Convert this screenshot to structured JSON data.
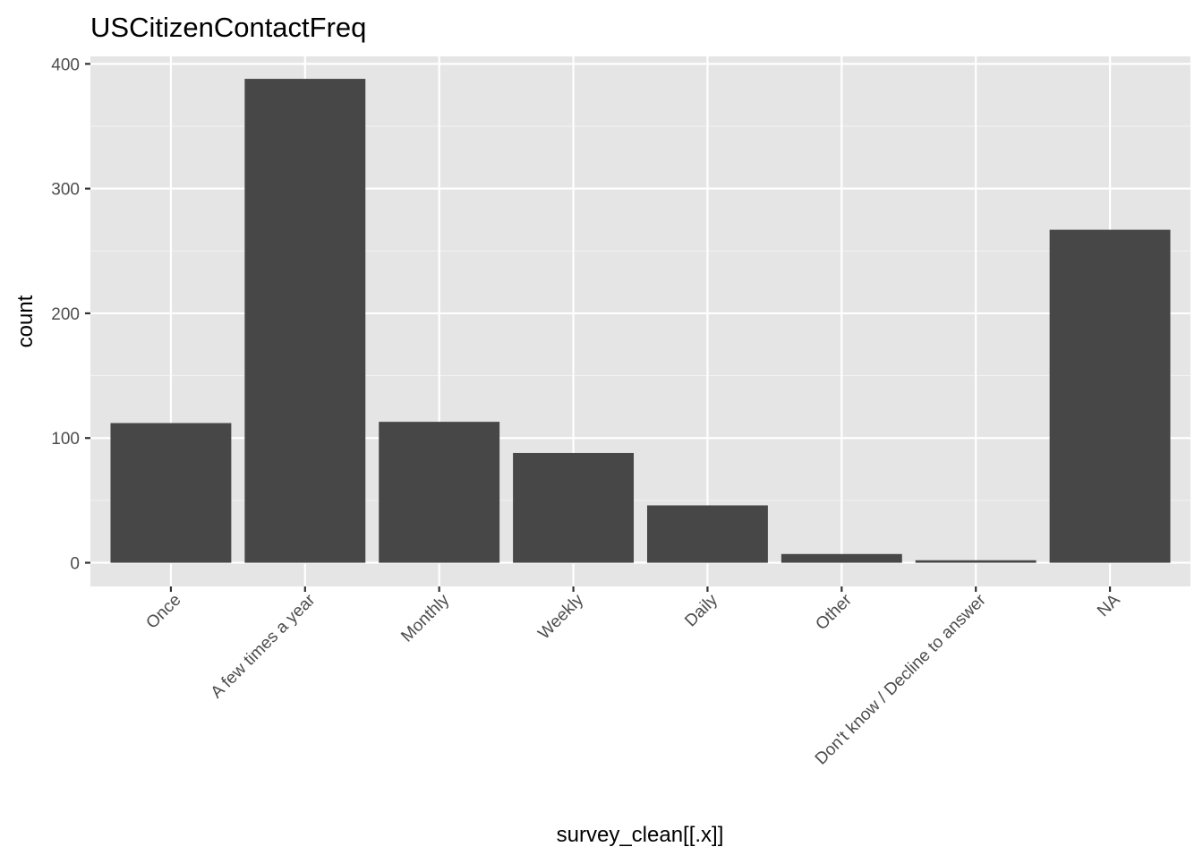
{
  "chart_data": {
    "type": "bar",
    "title": "USCitizenContactFreq",
    "xlabel": "survey_clean[[.x]]",
    "ylabel": "count",
    "categories": [
      "Once",
      "A few times a year",
      "Monthly",
      "Weekly",
      "Daily",
      "Other",
      "Don't know / Decline to answer",
      "NA"
    ],
    "values": [
      112,
      388,
      113,
      88,
      46,
      7,
      2,
      267
    ],
    "ylim": [
      -19,
      406
    ],
    "yticks": [
      0,
      100,
      200,
      300,
      400
    ],
    "ytick_labels": [
      "0",
      "100",
      "200",
      "300",
      "400"
    ],
    "grid": true,
    "legend": "none",
    "colors": {
      "panel_background": "#e5e5e5",
      "grid_major": "#ffffff",
      "grid_minor": "#f2f2f2",
      "bar_fill": "#474747",
      "tick_text": "#4d4d4d",
      "tick_mark": "#333333",
      "title_text": "#000000"
    }
  }
}
